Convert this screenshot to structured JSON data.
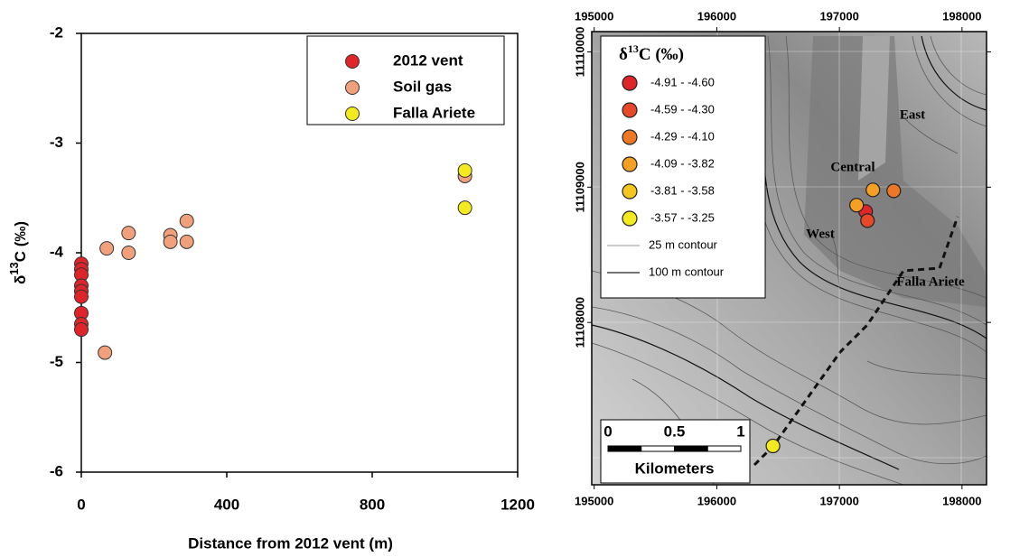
{
  "chart_data": [
    {
      "type": "scatter",
      "xlabel": "Distance from 2012 vent (m)",
      "ylabel": [
        "δ",
        "13",
        "C (‰)"
      ],
      "xlim": [
        0,
        1200
      ],
      "ylim": [
        -6,
        -2
      ],
      "xticks": [
        0,
        400,
        800,
        1200
      ],
      "yticks": [
        -6,
        -5,
        -4,
        -3,
        -2
      ],
      "legend": "upper right",
      "series": [
        {
          "name": "2012 vent",
          "color": "#e0252a",
          "x": [
            0,
            0,
            0,
            0,
            0,
            0,
            0,
            0,
            0
          ],
          "values": [
            -4.1,
            -4.15,
            -4.2,
            -4.3,
            -4.35,
            -4.4,
            -4.55,
            -4.65,
            -4.7
          ]
        },
        {
          "name": "Soil gas",
          "color": "#f0a07a",
          "x": [
            65,
            70,
            130,
            130,
            245,
            245,
            290,
            290,
            1055
          ],
          "values": [
            -4.91,
            -3.96,
            -3.82,
            -4.0,
            -3.84,
            -3.9,
            -3.71,
            -3.9,
            -3.3
          ]
        },
        {
          "name": "Falla Ariete",
          "color": "#f3ea1f",
          "x": [
            1055,
            1055
          ],
          "values": [
            -3.25,
            -3.59
          ]
        }
      ]
    },
    {
      "type": "map",
      "legend_title": [
        "δ",
        "13",
        "C (‰)"
      ],
      "xlim": [
        194980,
        198200
      ],
      "ylim": [
        11106800,
        11110150
      ],
      "xticks": [
        195000,
        196000,
        197000,
        198000
      ],
      "yticks": [
        11108000,
        11109000,
        11110000
      ],
      "series": [
        {
          "name": "-4.91 - -4.60",
          "color": "#e0252a",
          "x": [
            197214
          ],
          "values": [
            11108820
          ]
        },
        {
          "name": "-4.59 - -4.30",
          "color": "#e8482a",
          "x": [
            197229
          ],
          "values": [
            11108753
          ]
        },
        {
          "name": "-4.29 - -4.10",
          "color": "#ee7726",
          "x": [
            197443
          ],
          "values": [
            11108973
          ]
        },
        {
          "name": "-4.09 - -3.82",
          "color": "#f5a024",
          "x": [
            197140,
            197273
          ],
          "values": [
            11108867,
            11108980
          ]
        },
        {
          "name": "-3.81 - -3.58",
          "color": "#f5c71c",
          "x": [],
          "values": []
        },
        {
          "name": "-3.57 - -3.25",
          "color": "#f3ea1f",
          "x": [
            196458
          ],
          "values": [
            11107087
          ]
        }
      ],
      "contours": [
        {
          "name": "25 m contour",
          "color": "#aaaaaa"
        },
        {
          "name": "100 m contour",
          "color": "#222222"
        }
      ],
      "place_labels": [
        "East",
        "Central",
        "West",
        "Falla Ariete"
      ],
      "scale_bar": {
        "ticks": [
          0,
          0.5,
          1
        ],
        "unit": "Kilometers"
      }
    }
  ]
}
